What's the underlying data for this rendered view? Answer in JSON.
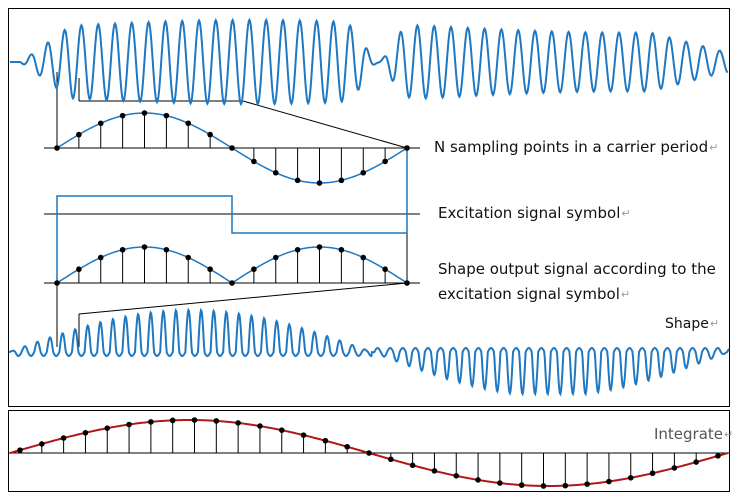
{
  "labels": {
    "sampling": "N sampling points in a carrier period",
    "excitation": "Excitation signal symbol",
    "shape_output": "Shape output signal  according to the excitation signal symbol",
    "shape": "Shape",
    "integrate": "Integrate"
  },
  "paragraph_mark": "↵",
  "colors": {
    "carrier": "#1f78c1",
    "integrate_curve": "#b01818",
    "stem": "#000000",
    "frame": "#000000",
    "grey_text": "#555555"
  },
  "sampling_points_per_period": 17,
  "integrate_points": 33
}
